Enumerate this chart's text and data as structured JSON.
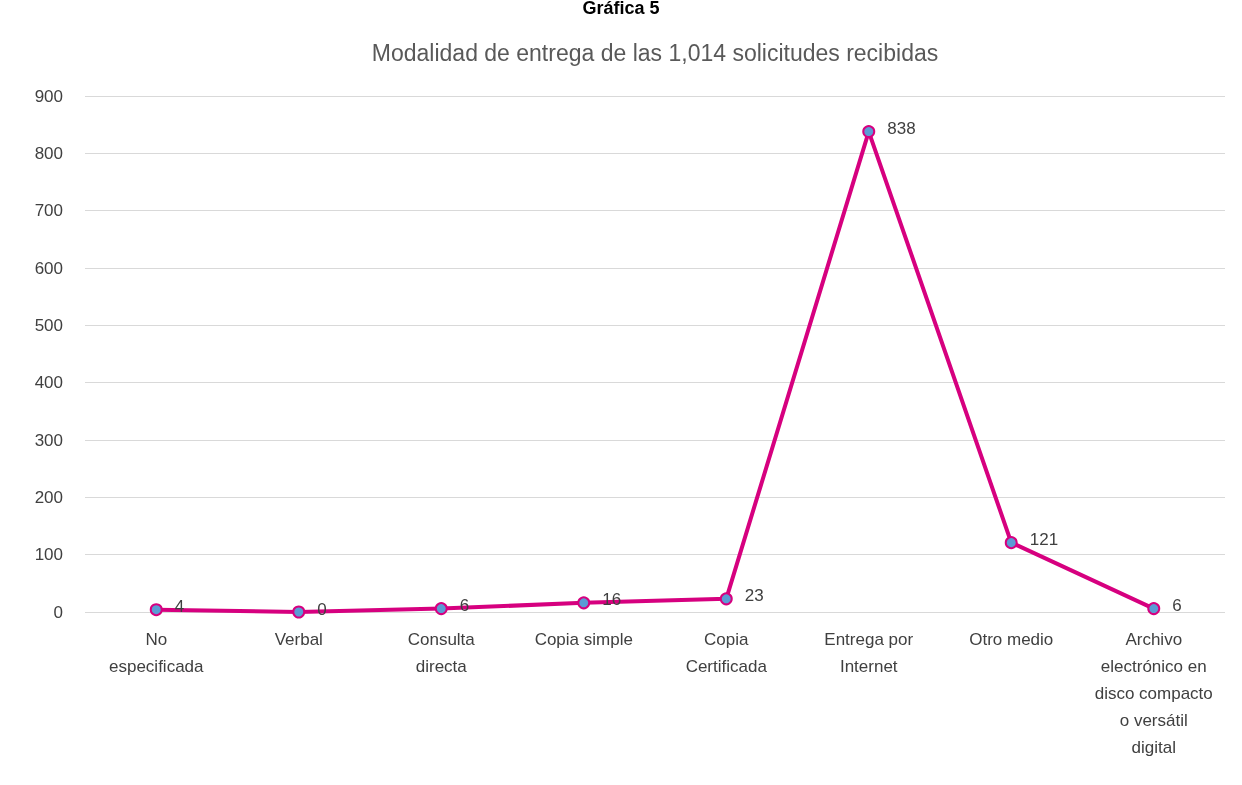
{
  "chart_data": {
    "type": "line",
    "title": "Gráfica 5",
    "subtitle": "Modalidad de entrega de las 1,014 solicitudes recibidas",
    "categories": [
      "No especificada",
      "Verbal",
      "Consulta directa",
      "Copia simple",
      "Copia Certificada",
      "Entrega por Internet",
      "Otro medio",
      "Archivo electrónico en disco compacto o versátil digital"
    ],
    "series": [
      {
        "color": "#d6007f",
        "values": [
          4,
          0,
          6,
          16,
          23,
          838,
          121,
          6
        ]
      }
    ],
    "ylim": [
      0,
      900
    ],
    "yticks": [
      0,
      100,
      200,
      300,
      400,
      500,
      600,
      700,
      800,
      900
    ],
    "grid": "y",
    "marker": "circle",
    "data_labels": true
  }
}
